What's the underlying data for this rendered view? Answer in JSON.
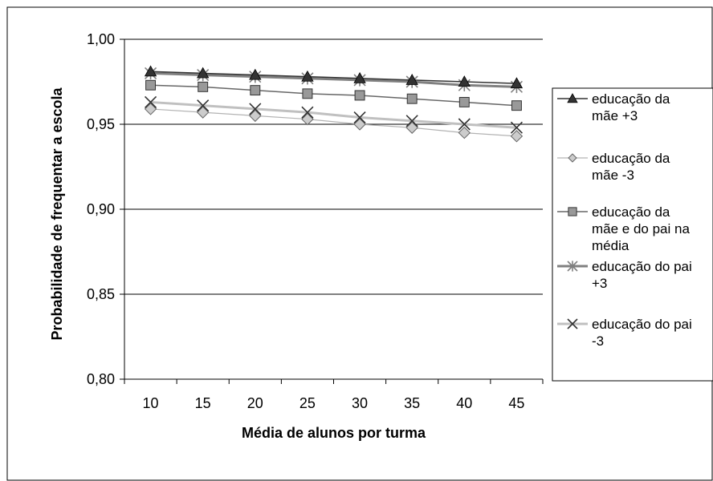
{
  "chart_data": {
    "type": "line",
    "title": "",
    "xlabel": "Média de alunos por turma",
    "ylabel": "Probabilidade de frequentar a escola",
    "x": [
      10,
      15,
      20,
      25,
      30,
      35,
      40,
      45
    ],
    "x_tick_labels": [
      "10",
      "15",
      "20",
      "25",
      "30",
      "35",
      "40",
      "45"
    ],
    "ylim": [
      0.8,
      1.0
    ],
    "y_tick_labels": [
      "0,80",
      "0,85",
      "0,90",
      "0,95",
      "1,00"
    ],
    "grid": "horizontal",
    "legend_position": "right",
    "series": [
      {
        "name": "educação da mãe +3",
        "values": [
          0.981,
          0.98,
          0.979,
          0.978,
          0.977,
          0.976,
          0.975,
          0.974
        ],
        "marker": "triangle",
        "marker_color": "#333333",
        "line_color": "#333333"
      },
      {
        "name": "educação da mãe -3",
        "values": [
          0.959,
          0.957,
          0.955,
          0.953,
          0.95,
          0.948,
          0.945,
          0.943
        ],
        "marker": "diamond",
        "marker_color": "#cccccc",
        "line_color": "#b3b3b3"
      },
      {
        "name": "educação da mãe e do pai na média",
        "values": [
          0.973,
          0.972,
          0.97,
          0.968,
          0.967,
          0.965,
          0.963,
          0.961
        ],
        "marker": "square",
        "marker_color": "#999999",
        "line_color": "#666666"
      },
      {
        "name": "educação do pai +3",
        "values": [
          0.98,
          0.979,
          0.978,
          0.977,
          0.976,
          0.975,
          0.973,
          0.972
        ],
        "marker": "asterisk",
        "marker_color": "#808080",
        "line_color": "#808080"
      },
      {
        "name": "educação do pai -3",
        "values": [
          0.963,
          0.961,
          0.959,
          0.957,
          0.954,
          0.952,
          0.95,
          0.948
        ],
        "marker": "x",
        "marker_color": "#333333",
        "line_color": "#c0c0c0"
      }
    ]
  },
  "legend_lines": [
    [
      "educação da",
      "mãe +3"
    ],
    [
      "educação da",
      "mãe -3"
    ],
    [
      "educação da",
      "mãe e do pai na",
      "média"
    ],
    [
      "educação do pai",
      "+3"
    ],
    [
      "educação do pai",
      "-3"
    ]
  ]
}
